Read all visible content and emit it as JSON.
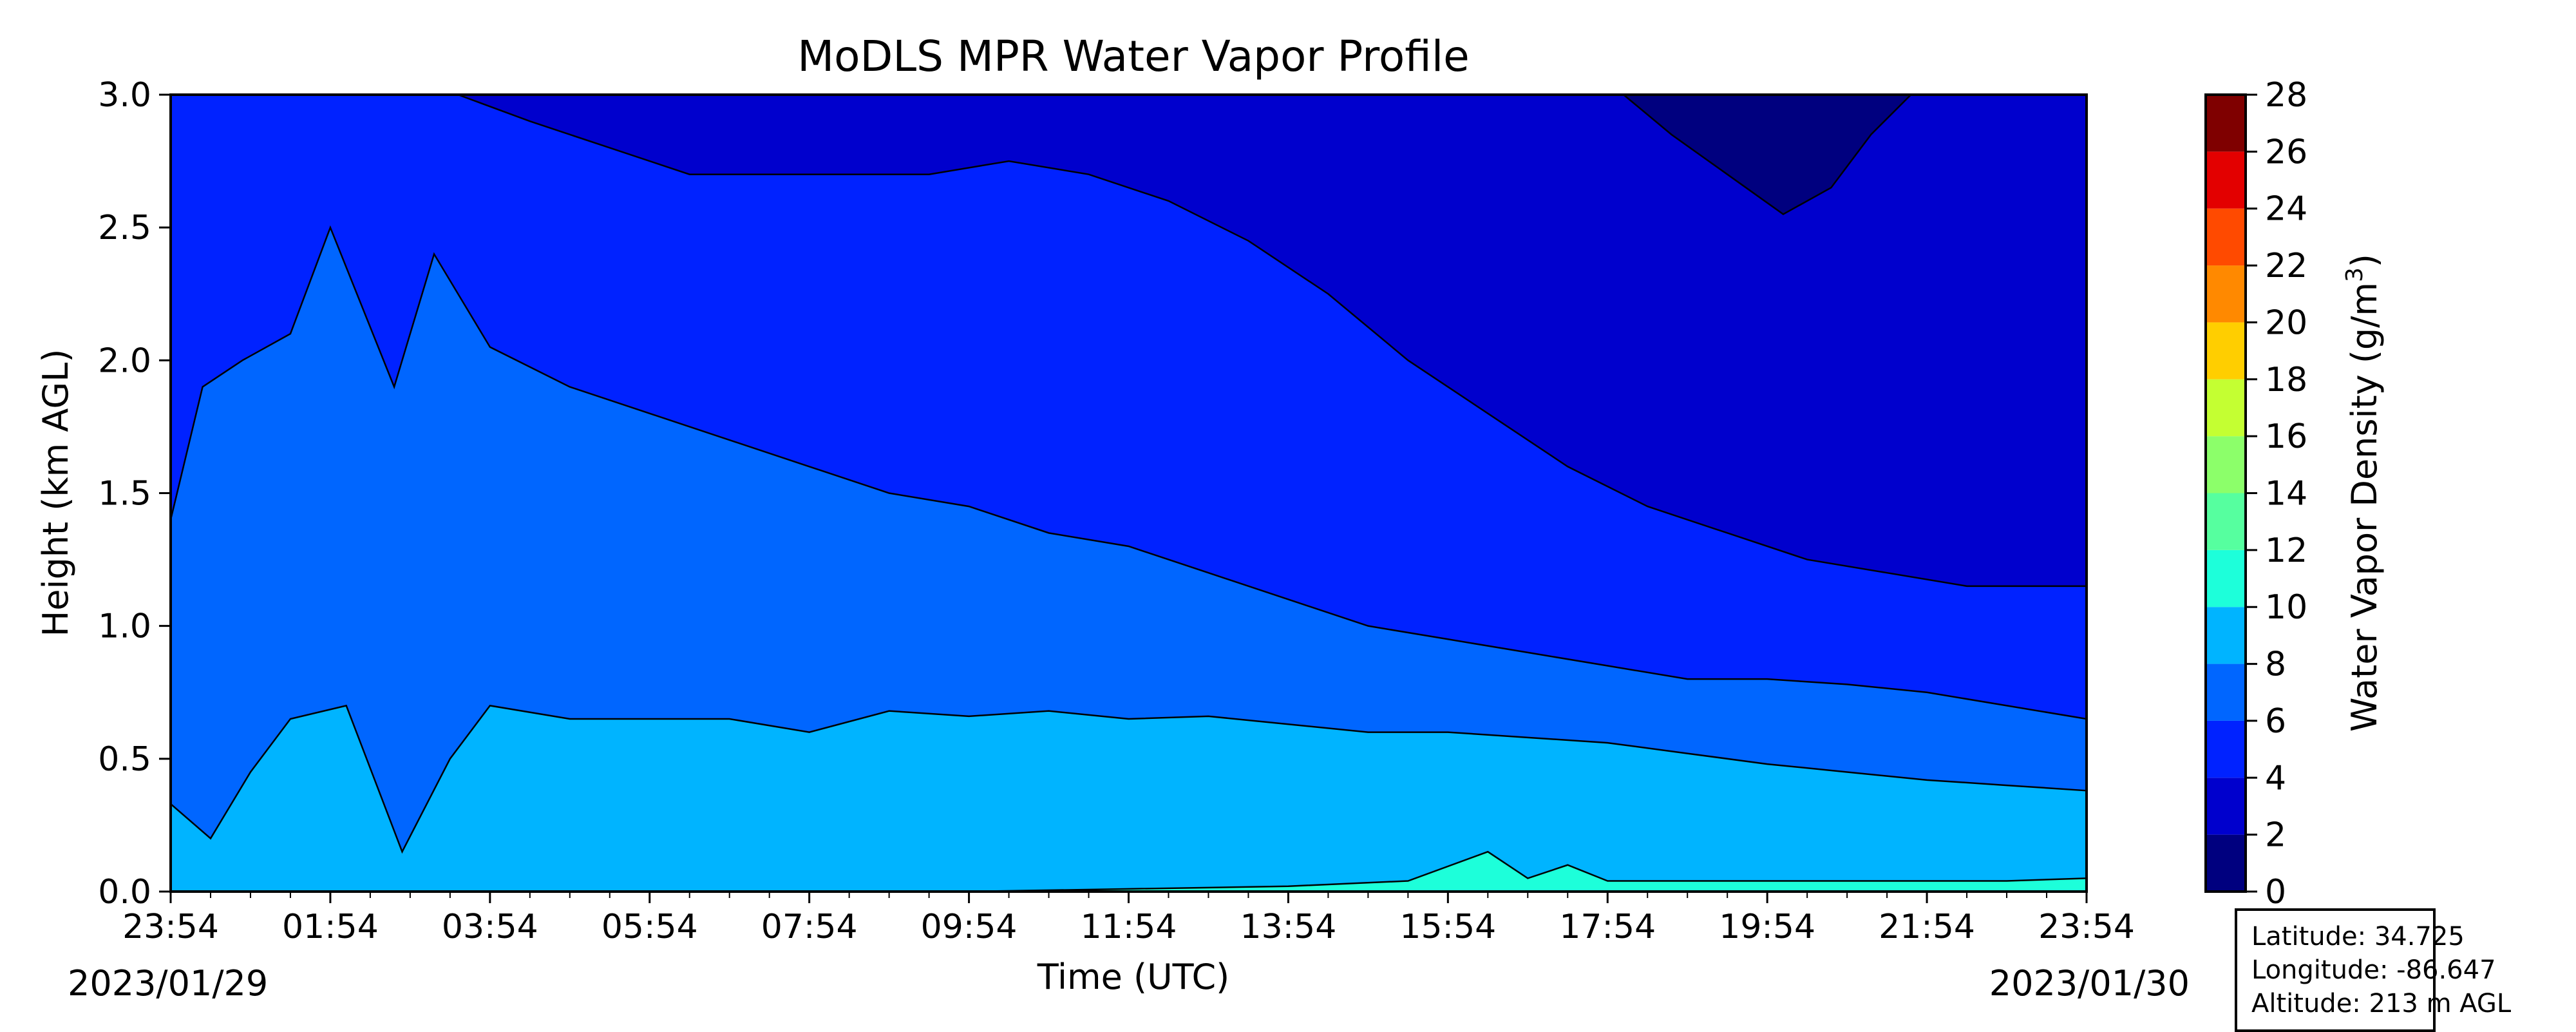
{
  "chart_data": {
    "type": "heatmap",
    "title": "MoDLS MPR Water Vapor Profile",
    "xlabel": "Time (UTC)",
    "ylabel": "Height (km AGL)",
    "colorbar_label_prefix": "Water Vapor Density (g/m",
    "colorbar_label_power": "3",
    "colorbar_label_suffix": ")",
    "x_ticks": [
      "23:54",
      "01:54",
      "03:54",
      "05:54",
      "07:54",
      "09:54",
      "11:54",
      "13:54",
      "15:54",
      "17:54",
      "19:54",
      "21:54",
      "23:54"
    ],
    "x_range_hours": [
      0,
      24
    ],
    "y_ticks": [
      "0.0",
      "0.5",
      "1.0",
      "1.5",
      "2.0",
      "2.5",
      "3.0"
    ],
    "ylim": [
      0,
      3.0
    ],
    "start_date": "2023/01/29",
    "end_date": "2023/01/30",
    "levels": [
      0,
      2,
      4,
      6,
      8,
      10,
      12,
      14,
      16,
      18,
      20,
      22,
      24,
      26,
      28
    ],
    "level_colors": [
      "#00007f",
      "#0000cd",
      "#0022ff",
      "#0066ff",
      "#00b4ff",
      "#1dffda",
      "#56ff9f",
      "#8cff6a",
      "#c4ff32",
      "#ffce00",
      "#ff8900",
      "#ff4a00",
      "#e30000",
      "#7f0000"
    ],
    "contour_boundaries": [
      {
        "name": "2 g/m3 boundary",
        "x": [
          3.6,
          4.5,
          5.5,
          6.5,
          7.5,
          8.5,
          9.5,
          10.5,
          11.5,
          12.5,
          13.5,
          14.5,
          15.5,
          16.5,
          17.5,
          18.5,
          19.5,
          20.5,
          21.5,
          22.5,
          23.5,
          24
        ],
        "y": [
          3.0,
          2.9,
          2.8,
          2.7,
          2.7,
          2.7,
          2.7,
          2.75,
          2.7,
          2.6,
          2.45,
          2.25,
          2.0,
          1.8,
          1.6,
          1.45,
          1.35,
          1.25,
          1.2,
          1.15,
          1.15,
          1.15
        ]
      },
      {
        "name": "4 g/m3 boundary",
        "x": [
          0,
          0.4,
          0.9,
          1.5,
          2.0,
          2.8,
          3.3,
          4.0,
          5.0,
          6.0,
          7.0,
          8.0,
          9.0,
          10.0,
          11.0,
          12.0,
          13.0,
          14.0,
          15.0,
          16.0,
          17.0,
          18.0,
          19.0,
          20.0,
          21.0,
          22.0,
          23.0,
          24
        ],
        "y": [
          1.4,
          1.9,
          2.0,
          2.1,
          2.5,
          1.9,
          2.4,
          2.05,
          1.9,
          1.8,
          1.7,
          1.6,
          1.5,
          1.45,
          1.35,
          1.3,
          1.2,
          1.1,
          1.0,
          0.95,
          0.9,
          0.85,
          0.8,
          0.8,
          0.78,
          0.75,
          0.7,
          0.65
        ]
      },
      {
        "name": "6 g/m3 boundary",
        "x": [
          0,
          0.5,
          1.0,
          1.5,
          2.2,
          2.9,
          3.5,
          4.0,
          5.0,
          6.0,
          7.0,
          8.0,
          9.0,
          10.0,
          11.0,
          12.0,
          13.0,
          14.0,
          15.0,
          16.0,
          17.0,
          18.0,
          19.0,
          20.0,
          21.0,
          22.0,
          23.0,
          24
        ],
        "y": [
          0.33,
          0.2,
          0.45,
          0.65,
          0.7,
          0.15,
          0.5,
          0.7,
          0.65,
          0.65,
          0.65,
          0.6,
          0.68,
          0.66,
          0.68,
          0.65,
          0.66,
          0.63,
          0.6,
          0.6,
          0.58,
          0.56,
          0.52,
          0.48,
          0.45,
          0.42,
          0.4,
          0.38
        ]
      },
      {
        "name": "10 g/m3 boundary",
        "x": [
          10,
          12,
          14,
          15.5,
          16.5,
          17.0,
          17.5,
          18.0,
          19.0,
          20.0,
          21.0,
          22.0,
          23.0,
          24
        ],
        "y": [
          0.0,
          0.01,
          0.02,
          0.04,
          0.15,
          0.05,
          0.1,
          0.04,
          0.04,
          0.04,
          0.04,
          0.04,
          0.04,
          0.05
        ]
      },
      {
        "name": "0 g/m3 dome",
        "x": [
          18.2,
          18.8,
          19.5,
          20.2,
          20.8,
          21.3,
          21.8
        ],
        "y": [
          3.0,
          2.85,
          2.7,
          2.55,
          2.65,
          2.85,
          3.0
        ]
      }
    ]
  },
  "info": {
    "latitude": "Latitude: 34.725",
    "longitude": "Longitude: -86.647",
    "altitude": "Altitude: 213 m AGL"
  }
}
